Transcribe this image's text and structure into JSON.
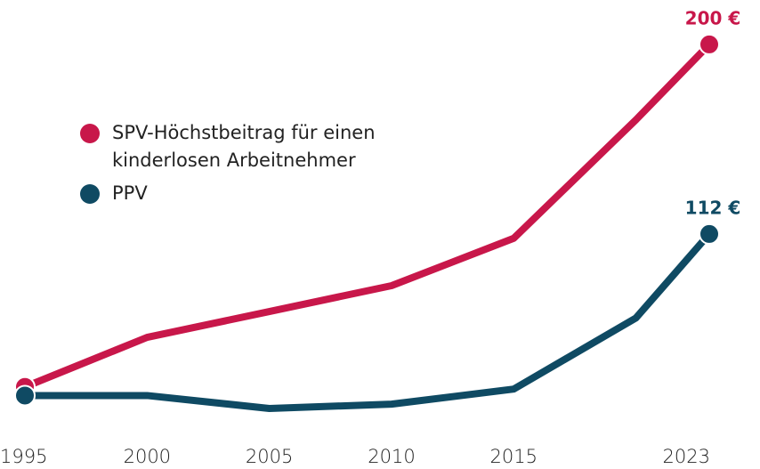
{
  "chart_data": {
    "type": "line",
    "x": [
      1995,
      2000,
      2005,
      2010,
      2015,
      2020,
      2023
    ],
    "xlim": [
      1995,
      2023
    ],
    "xticks": [
      1995,
      2000,
      2005,
      2010,
      2015,
      2023
    ],
    "ylim": [
      0,
      220
    ],
    "series": [
      {
        "name": "SPV-Höchstbeitrag für einen kinderlosen Arbeitnehmer",
        "color": "#c8174a",
        "values": [
          41,
          64,
          76,
          88,
          110,
          165,
          200
        ],
        "value_labels": [
          null,
          null,
          null,
          null,
          null,
          null,
          "200 €"
        ]
      },
      {
        "name": "PPV",
        "color": "#0f4a63",
        "values": [
          37,
          37,
          31,
          33,
          40,
          73,
          112
        ],
        "value_labels": [
          null,
          null,
          null,
          null,
          null,
          null,
          "112 €"
        ]
      }
    ],
    "grid": false
  }
}
